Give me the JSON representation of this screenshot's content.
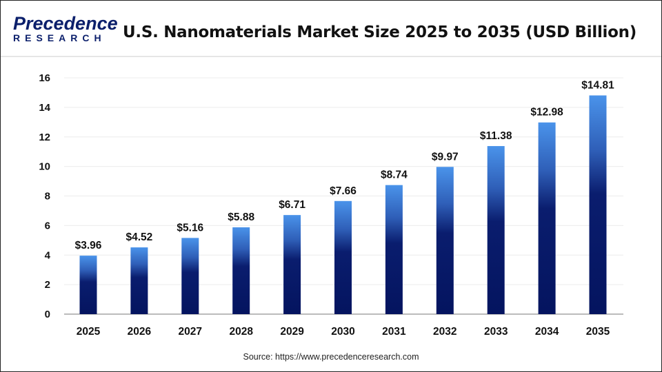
{
  "logo": {
    "line1": "Precedence",
    "line2": "RESEARCH"
  },
  "source": "Source: https://www.precedenceresearch.com",
  "colors": {
    "bar_top": "#4a93ea",
    "bar_bottom": "#04145f",
    "grid": "#ececec"
  },
  "chart_data": {
    "type": "bar",
    "title": "U.S. Nanomaterials Market Size 2025 to 2035 (USD Billion)",
    "categories": [
      "2025",
      "2026",
      "2027",
      "2028",
      "2029",
      "2030",
      "2031",
      "2032",
      "2033",
      "2034",
      "2035"
    ],
    "values": [
      3.96,
      4.52,
      5.16,
      5.88,
      6.71,
      7.66,
      8.74,
      9.97,
      11.38,
      12.98,
      14.81
    ],
    "data_labels": [
      "$3.96",
      "$4.52",
      "$5.16",
      "$5.88",
      "$6.71",
      "$7.66",
      "$8.74",
      "$9.97",
      "$11.38",
      "$12.98",
      "$14.81"
    ],
    "yticks": [
      "0",
      "2",
      "4",
      "6",
      "8",
      "10",
      "12",
      "14",
      "16"
    ],
    "ylim": [
      0,
      16
    ],
    "grid": true,
    "xlabel": "",
    "ylabel": ""
  }
}
